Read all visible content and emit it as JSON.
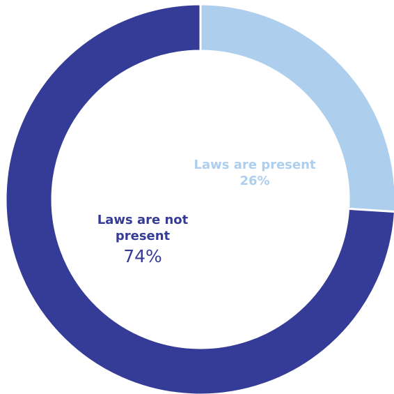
{
  "chart_data": {
    "type": "pie",
    "donut": true,
    "slices": [
      {
        "label": "Laws are present",
        "value": 26,
        "value_label": "26%",
        "color": "#adcfed"
      },
      {
        "label": "Laws are not present",
        "value": 74,
        "value_label": "74%",
        "color": "#353c97"
      }
    ],
    "start_angle_deg": 0,
    "direction": "clockwise",
    "legend": "none"
  }
}
